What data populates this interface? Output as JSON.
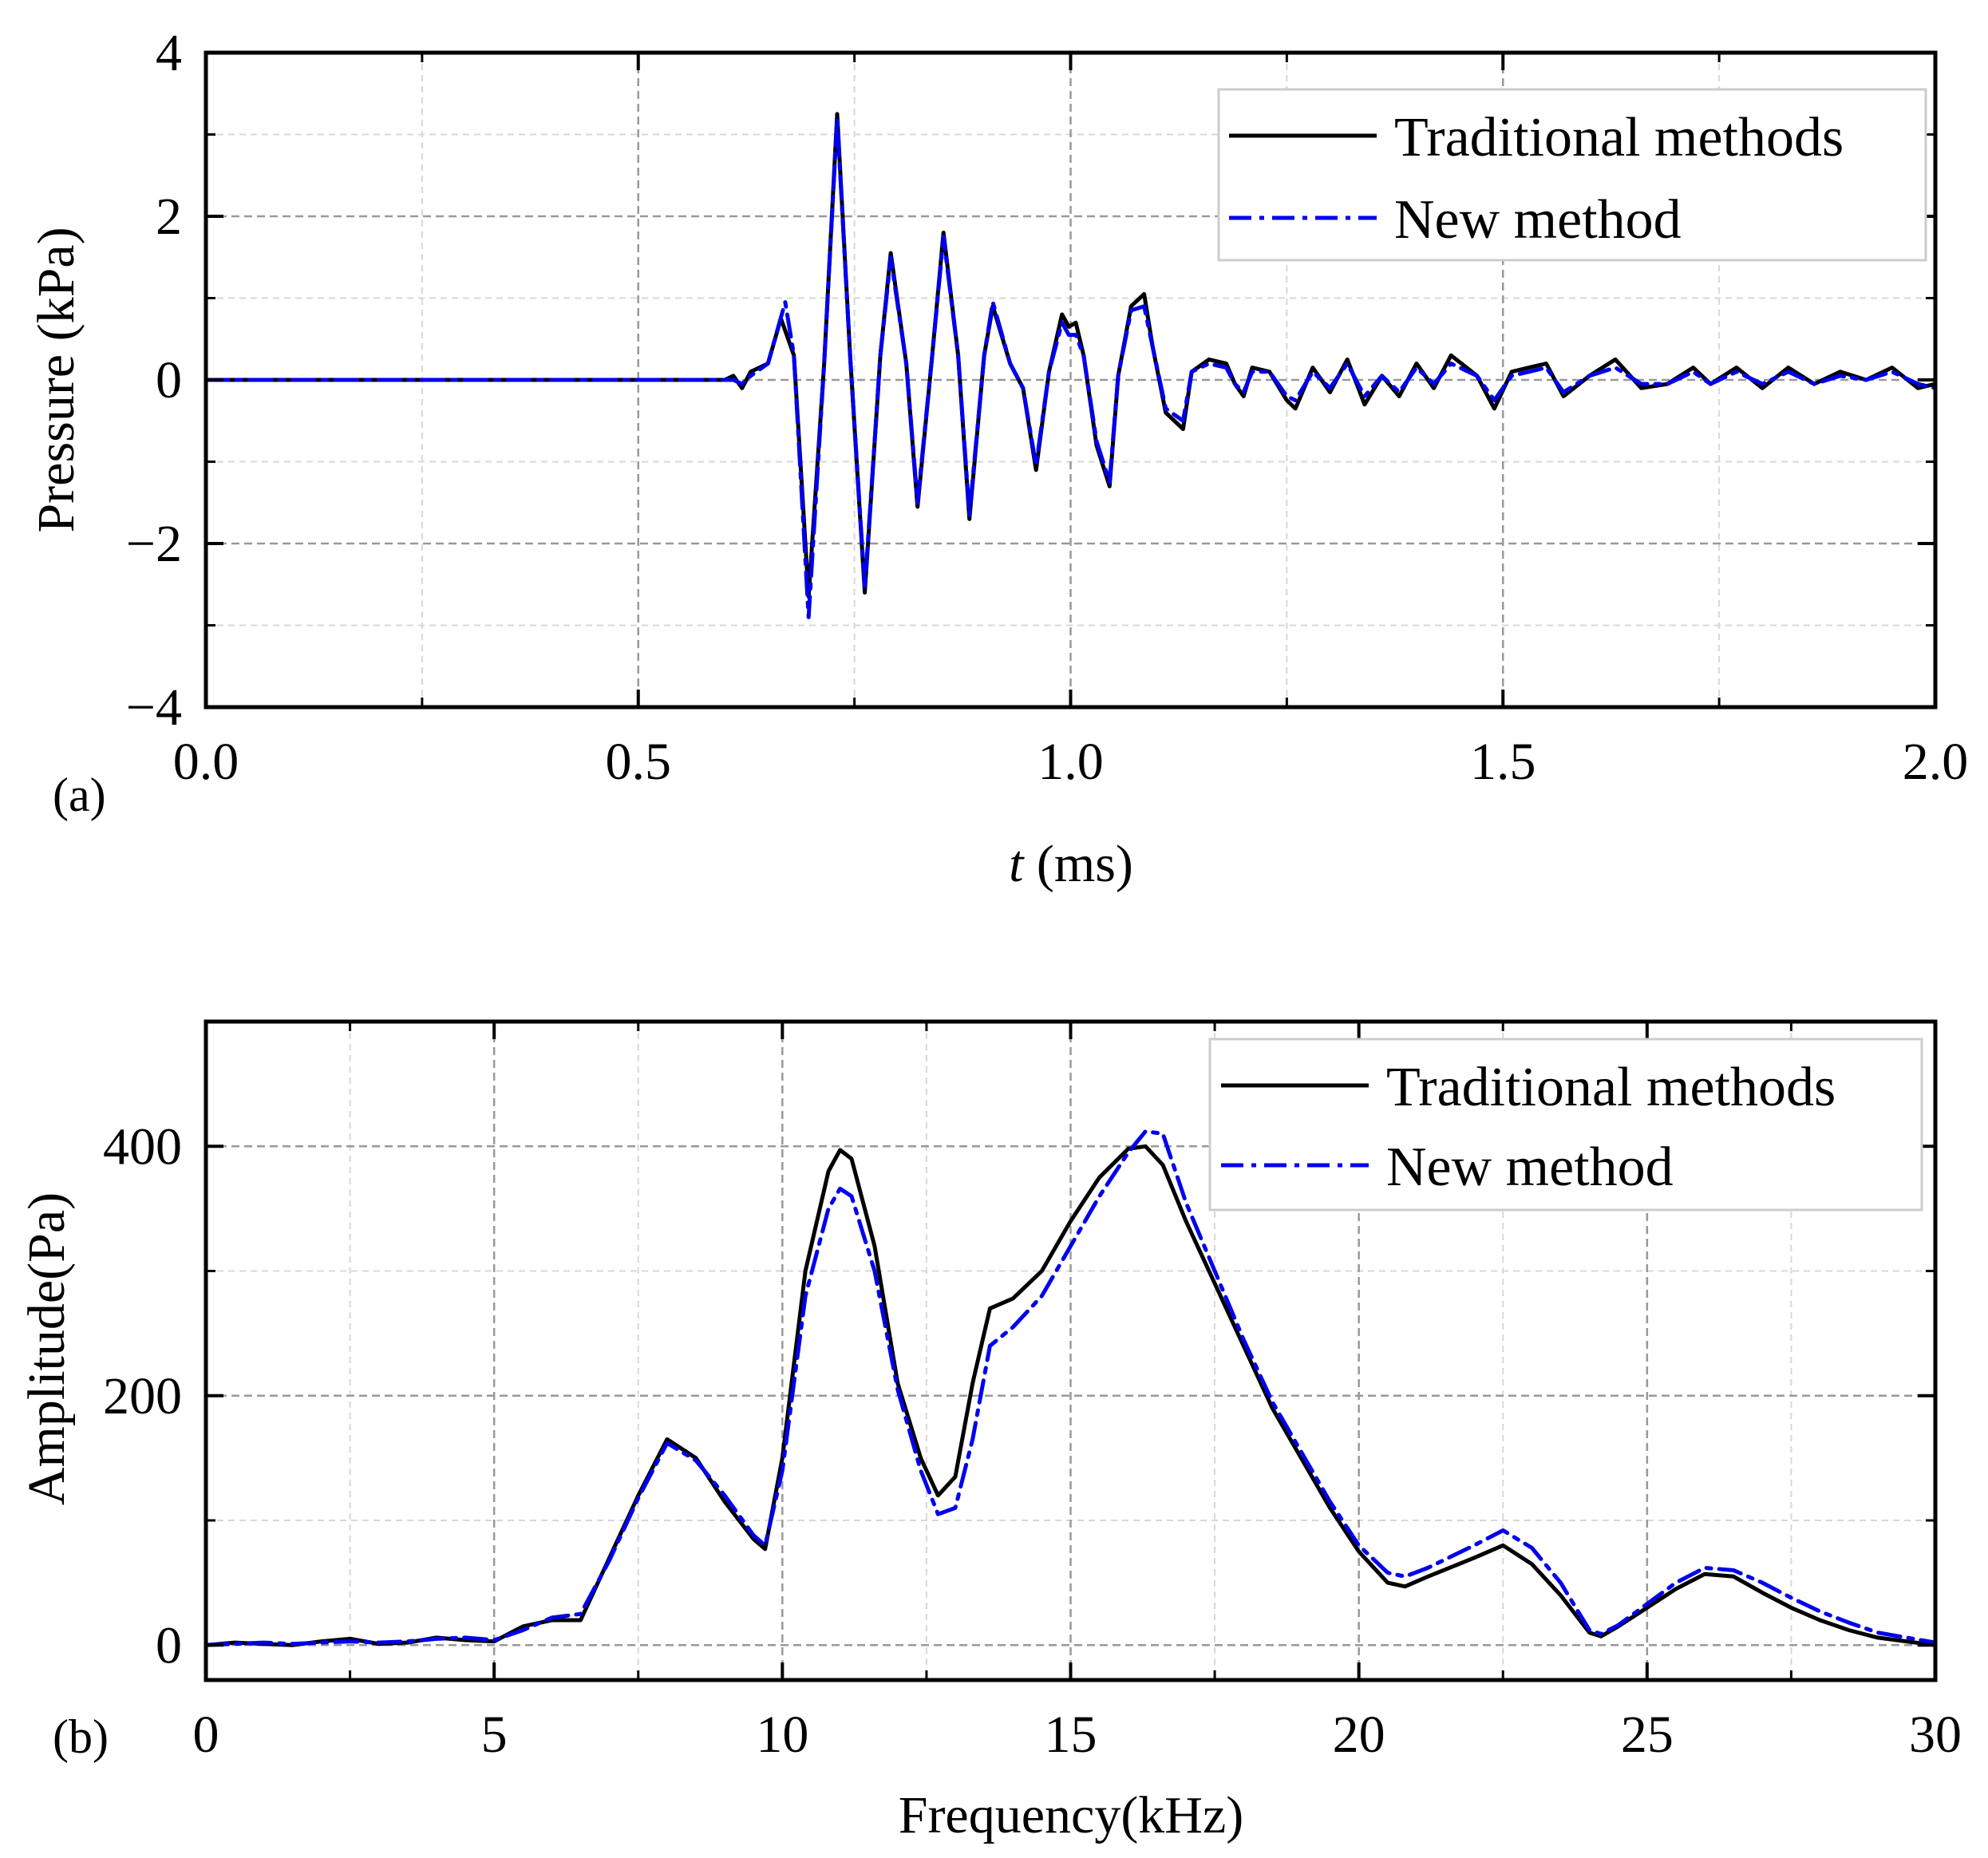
{
  "chart_data": [
    {
      "type": "line",
      "panel_label": "(a)",
      "xlabel_var": "t",
      "xlabel_unit": " (ms)",
      "ylabel": "Pressure (kPa)",
      "xlim": [
        0,
        2
      ],
      "ylim": [
        -4,
        4
      ],
      "xticks": [
        0,
        0.5,
        1.0,
        1.5,
        2.0
      ],
      "xtick_labels": [
        "0.0",
        "0.5",
        "1.0",
        "1.5",
        "2.0"
      ],
      "yticks": [
        -4,
        -2,
        0,
        2,
        4
      ],
      "ytick_labels": [
        "−4",
        "−2",
        "0",
        "2",
        "4"
      ],
      "grid": true,
      "legend_position": "top-right",
      "series": [
        {
          "name": "Traditional methods",
          "color": "#000000",
          "style": "solid",
          "x": [
            0,
            0.6,
            0.61,
            0.62,
            0.63,
            0.65,
            0.665,
            0.68,
            0.697,
            0.715,
            0.73,
            0.745,
            0.762,
            0.78,
            0.792,
            0.81,
            0.823,
            0.84,
            0.853,
            0.87,
            0.883,
            0.9,
            0.91,
            0.93,
            0.945,
            0.96,
            0.975,
            0.99,
            0.998,
            1.006,
            1.015,
            1.03,
            1.045,
            1.055,
            1.07,
            1.085,
            1.095,
            1.11,
            1.13,
            1.14,
            1.16,
            1.18,
            1.19,
            1.2,
            1.21,
            1.23,
            1.25,
            1.26,
            1.28,
            1.3,
            1.32,
            1.34,
            1.36,
            1.38,
            1.4,
            1.42,
            1.44,
            1.47,
            1.49,
            1.51,
            1.53,
            1.55,
            1.57,
            1.6,
            1.63,
            1.66,
            1.69,
            1.72,
            1.74,
            1.77,
            1.8,
            1.83,
            1.86,
            1.89,
            1.92,
            1.95,
            1.98,
            2.0
          ],
          "y": [
            0,
            0,
            0.05,
            -0.1,
            0.1,
            0.2,
            0.75,
            0.3,
            -2.65,
            0.2,
            3.25,
            0.3,
            -2.6,
            0.3,
            1.55,
            0.2,
            -1.55,
            0.3,
            1.8,
            0.3,
            -1.7,
            0.3,
            0.9,
            0.2,
            -0.1,
            -1.1,
            0.1,
            0.8,
            0.65,
            0.7,
            0.3,
            -0.8,
            -1.3,
            0.05,
            0.9,
            1.05,
            0.4,
            -0.4,
            -0.6,
            0.1,
            0.25,
            0.2,
            -0.05,
            -0.2,
            0.15,
            0.1,
            -0.25,
            -0.35,
            0.15,
            -0.15,
            0.25,
            -0.3,
            0.05,
            -0.2,
            0.2,
            -0.1,
            0.3,
            0.05,
            -0.35,
            0.1,
            0.15,
            0.2,
            -0.2,
            0.05,
            0.25,
            -0.1,
            -0.05,
            0.15,
            -0.05,
            0.15,
            -0.1,
            0.15,
            -0.05,
            0.1,
            0.0,
            0.15,
            -0.1,
            -0.05
          ]
        },
        {
          "name": "New method",
          "color": "#0000ee",
          "style": "dashdot",
          "x": [
            0,
            0.6,
            0.61,
            0.62,
            0.63,
            0.65,
            0.67,
            0.68,
            0.697,
            0.715,
            0.73,
            0.745,
            0.762,
            0.78,
            0.792,
            0.81,
            0.823,
            0.84,
            0.853,
            0.87,
            0.883,
            0.9,
            0.91,
            0.93,
            0.945,
            0.96,
            0.975,
            0.99,
            0.998,
            1.006,
            1.015,
            1.03,
            1.045,
            1.055,
            1.07,
            1.085,
            1.095,
            1.11,
            1.13,
            1.14,
            1.16,
            1.18,
            1.19,
            1.2,
            1.21,
            1.23,
            1.25,
            1.26,
            1.28,
            1.3,
            1.32,
            1.34,
            1.36,
            1.38,
            1.4,
            1.42,
            1.44,
            1.47,
            1.49,
            1.51,
            1.53,
            1.55,
            1.57,
            1.6,
            1.63,
            1.66,
            1.69,
            1.72,
            1.74,
            1.77,
            1.8,
            1.83,
            1.86,
            1.89,
            1.92,
            1.95,
            1.98,
            2.0
          ],
          "y": [
            0,
            0,
            0.0,
            -0.05,
            0.05,
            0.2,
            0.95,
            0.3,
            -2.9,
            0.2,
            3.2,
            0.3,
            -2.55,
            0.3,
            1.5,
            0.2,
            -1.5,
            0.3,
            1.75,
            0.3,
            -1.65,
            0.3,
            0.95,
            0.2,
            -0.1,
            -1.05,
            0.1,
            0.7,
            0.55,
            0.55,
            0.3,
            -0.75,
            -1.25,
            0.05,
            0.85,
            0.9,
            0.4,
            -0.35,
            -0.5,
            0.1,
            0.2,
            0.15,
            -0.05,
            -0.15,
            0.1,
            0.1,
            -0.2,
            -0.25,
            0.1,
            -0.1,
            0.2,
            -0.2,
            0.05,
            -0.15,
            0.15,
            -0.05,
            0.2,
            0.05,
            -0.25,
            0.05,
            0.1,
            0.15,
            -0.15,
            0.05,
            0.15,
            -0.05,
            -0.05,
            0.1,
            -0.05,
            0.1,
            -0.05,
            0.1,
            -0.05,
            0.05,
            0.0,
            0.1,
            -0.05,
            -0.1
          ]
        }
      ]
    },
    {
      "type": "line",
      "panel_label": "(b)",
      "xlabel": "Frequency(kHz)",
      "ylabel": "Amplitude(Pa)",
      "xlim": [
        0,
        30
      ],
      "ylim": [
        -28,
        500
      ],
      "xticks": [
        0,
        5,
        10,
        15,
        20,
        25,
        30
      ],
      "xtick_labels": [
        "0",
        "5",
        "10",
        "15",
        "20",
        "25",
        "30"
      ],
      "yticks": [
        0,
        200,
        400
      ],
      "ytick_labels": [
        "0",
        "200",
        "400"
      ],
      "grid": true,
      "legend_position": "top-right",
      "series": [
        {
          "name": "Traditional methods",
          "color": "#000000",
          "style": "solid",
          "x": [
            0,
            0.5,
            1,
            1.5,
            2,
            2.5,
            3,
            3.5,
            4,
            4.5,
            5,
            5.5,
            6,
            6.5,
            7,
            7.5,
            8,
            8.5,
            9,
            9.5,
            9.7,
            10,
            10.4,
            10.8,
            11,
            11.2,
            11.6,
            12,
            12.4,
            12.7,
            13,
            13.3,
            13.6,
            14,
            14.5,
            15,
            15.5,
            16,
            16.3,
            16.6,
            17,
            17.5,
            18,
            18.5,
            19,
            19.5,
            20,
            20.5,
            20.8,
            21.2,
            22,
            22.5,
            23,
            23.5,
            24,
            24.2,
            24.5,
            25,
            25.5,
            26,
            26.5,
            27,
            27.5,
            28,
            28.5,
            29,
            29.5,
            30
          ],
          "y": [
            0,
            2,
            1,
            0,
            3,
            5,
            1,
            2,
            6,
            4,
            3,
            15,
            20,
            20,
            70,
            120,
            165,
            150,
            115,
            85,
            77,
            150,
            300,
            380,
            397,
            390,
            320,
            210,
            150,
            120,
            135,
            210,
            270,
            278,
            300,
            340,
            375,
            398,
            400,
            385,
            340,
            290,
            240,
            190,
            150,
            110,
            75,
            50,
            47,
            55,
            70,
            80,
            65,
            40,
            10,
            7,
            15,
            30,
            45,
            57,
            55,
            42,
            30,
            20,
            12,
            6,
            3,
            0
          ]
        },
        {
          "name": "New method",
          "color": "#0000ee",
          "style": "dashdot",
          "x": [
            0,
            0.5,
            1,
            1.5,
            2,
            2.5,
            3,
            3.5,
            4,
            4.5,
            5,
            5.5,
            6,
            6.5,
            7,
            7.5,
            8,
            8.5,
            9,
            9.5,
            9.7,
            10,
            10.4,
            10.8,
            11,
            11.2,
            11.6,
            12,
            12.4,
            12.7,
            13,
            13.3,
            13.6,
            14,
            14.5,
            15,
            15.5,
            16,
            16.3,
            16.6,
            17,
            17.5,
            18,
            18.5,
            19,
            19.5,
            20,
            20.5,
            20.8,
            21.2,
            22,
            22.5,
            23,
            23.5,
            24,
            24.2,
            24.5,
            25,
            25.5,
            26,
            26.5,
            27,
            27.5,
            28,
            28.5,
            29,
            29.5,
            30
          ],
          "y": [
            0,
            1,
            2,
            1,
            2,
            3,
            2,
            3,
            5,
            6,
            4,
            12,
            22,
            25,
            68,
            118,
            162,
            148,
            120,
            88,
            80,
            140,
            280,
            350,
            366,
            360,
            300,
            205,
            140,
            105,
            110,
            165,
            240,
            255,
            280,
            320,
            360,
            395,
            412,
            410,
            355,
            300,
            245,
            195,
            155,
            115,
            80,
            58,
            55,
            62,
            80,
            92,
            78,
            50,
            12,
            9,
            16,
            33,
            50,
            62,
            60,
            50,
            38,
            27,
            18,
            10,
            6,
            2
          ]
        }
      ]
    }
  ]
}
